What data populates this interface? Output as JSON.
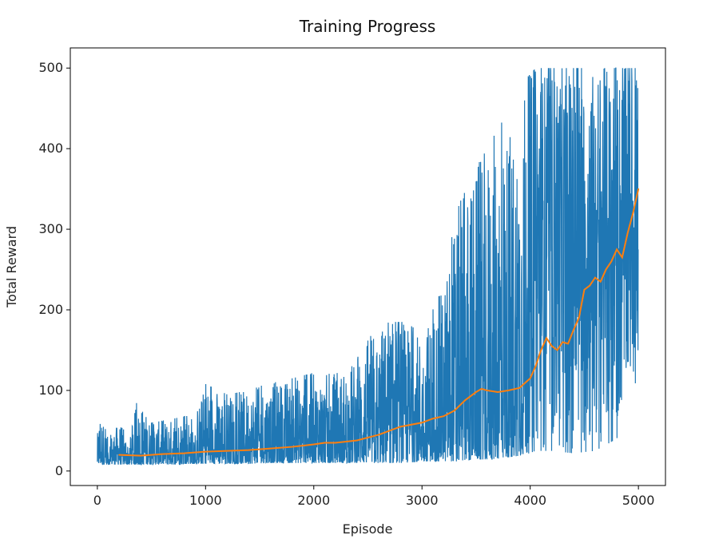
{
  "chart_data": {
    "type": "line",
    "title": "Training Progress",
    "xlabel": "Episode",
    "ylabel": "Total Reward",
    "xlim": [
      -250,
      5250
    ],
    "ylim": [
      -18,
      525
    ],
    "xticks": [
      0,
      1000,
      2000,
      3000,
      4000,
      5000
    ],
    "yticks": [
      0,
      100,
      200,
      300,
      400,
      500
    ],
    "grid": false,
    "legend": "none",
    "series": [
      {
        "role": "raw",
        "color": "#1f77b4",
        "episodes": 5000,
        "envelope": [
          {
            "x": 0,
            "min": 8,
            "max": 45
          },
          {
            "x": 25,
            "min": 8,
            "max": 75
          },
          {
            "x": 100,
            "min": 8,
            "max": 40
          },
          {
            "x": 200,
            "min": 8,
            "max": 60
          },
          {
            "x": 300,
            "min": 8,
            "max": 40
          },
          {
            "x": 370,
            "min": 8,
            "max": 90
          },
          {
            "x": 500,
            "min": 8,
            "max": 60
          },
          {
            "x": 700,
            "min": 8,
            "max": 65
          },
          {
            "x": 900,
            "min": 9,
            "max": 70
          },
          {
            "x": 1000,
            "min": 9,
            "max": 108
          },
          {
            "x": 1200,
            "min": 9,
            "max": 95
          },
          {
            "x": 1400,
            "min": 9,
            "max": 100
          },
          {
            "x": 1600,
            "min": 10,
            "max": 110
          },
          {
            "x": 1800,
            "min": 10,
            "max": 115
          },
          {
            "x": 2000,
            "min": 10,
            "max": 122
          },
          {
            "x": 2200,
            "min": 10,
            "max": 120
          },
          {
            "x": 2400,
            "min": 10,
            "max": 140
          },
          {
            "x": 2560,
            "min": 10,
            "max": 175
          },
          {
            "x": 2700,
            "min": 10,
            "max": 185
          },
          {
            "x": 2850,
            "min": 10,
            "max": 185
          },
          {
            "x": 3000,
            "min": 12,
            "max": 170
          },
          {
            "x": 3200,
            "min": 12,
            "max": 230
          },
          {
            "x": 3320,
            "min": 12,
            "max": 325
          },
          {
            "x": 3500,
            "min": 14,
            "max": 375
          },
          {
            "x": 3700,
            "min": 15,
            "max": 430
          },
          {
            "x": 3850,
            "min": 18,
            "max": 440
          },
          {
            "x": 3950,
            "min": 20,
            "max": 485
          },
          {
            "x": 4050,
            "min": 25,
            "max": 500
          },
          {
            "x": 4200,
            "min": 25,
            "max": 500
          },
          {
            "x": 4400,
            "min": 22,
            "max": 500
          },
          {
            "x": 4600,
            "min": 25,
            "max": 500
          },
          {
            "x": 4800,
            "min": 40,
            "max": 500
          },
          {
            "x": 5000,
            "min": 120,
            "max": 500
          }
        ]
      },
      {
        "role": "moving-average",
        "color": "#ff7f0e",
        "x": [
          200,
          400,
          600,
          800,
          1000,
          1200,
          1400,
          1600,
          1800,
          2000,
          2100,
          2200,
          2400,
          2600,
          2800,
          3000,
          3100,
          3200,
          3300,
          3400,
          3500,
          3550,
          3600,
          3700,
          3800,
          3900,
          4000,
          4050,
          4100,
          4150,
          4200,
          4250,
          4300,
          4350,
          4400,
          4450,
          4500,
          4550,
          4600,
          4650,
          4700,
          4750,
          4800,
          4850,
          4900,
          4950,
          5000
        ],
        "values": [
          20,
          19,
          21,
          22,
          24,
          25,
          26,
          28,
          30,
          33,
          35,
          35,
          38,
          45,
          55,
          60,
          65,
          68,
          75,
          88,
          98,
          102,
          100,
          98,
          100,
          103,
          115,
          130,
          150,
          165,
          155,
          150,
          160,
          158,
          175,
          190,
          225,
          230,
          240,
          235,
          250,
          260,
          275,
          265,
          295,
          320,
          350
        ]
      }
    ]
  }
}
